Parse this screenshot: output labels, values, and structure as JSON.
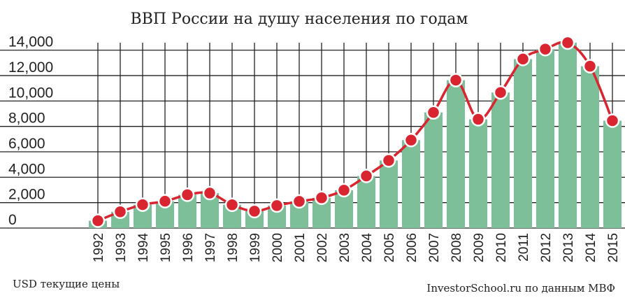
{
  "chart_data": {
    "type": "bar",
    "title": "ВВП России на душу населения по годам",
    "xlabel": "",
    "ylabel": "",
    "unit_note": "USD текущие цены",
    "source": "InvestorSchool.ru по данным МВФ",
    "categories": [
      "1992",
      "1993",
      "1994",
      "1995",
      "1996",
      "1997",
      "1998",
      "1999",
      "2000",
      "2001",
      "2002",
      "2003",
      "2004",
      "2005",
      "2006",
      "2007",
      "2008",
      "2009",
      "2010",
      "2011",
      "2012",
      "2013",
      "2014",
      "2015"
    ],
    "values": [
      580,
      1280,
      1840,
      2110,
      2620,
      2750,
      1830,
      1330,
      1770,
      2100,
      2380,
      2980,
      4100,
      5320,
      6920,
      9100,
      11640,
      8560,
      10670,
      13300,
      14080,
      14590,
      12740,
      8450
    ],
    "yticks": [
      0,
      2000,
      4000,
      6000,
      8000,
      10000,
      12000,
      14000
    ],
    "ytick_labels": [
      "0",
      "2,000",
      "4,000",
      "6,000",
      "8,000",
      "10,000",
      "12,000",
      "14,000"
    ],
    "ylim": [
      0,
      14590
    ],
    "grid": true,
    "overlay": "line with markers",
    "colors": {
      "bar": "#7dbf98",
      "line": "#d9252f",
      "marker_fill": "#d9252f",
      "marker_stroke": "#ffffff",
      "grid": "#222222"
    }
  }
}
